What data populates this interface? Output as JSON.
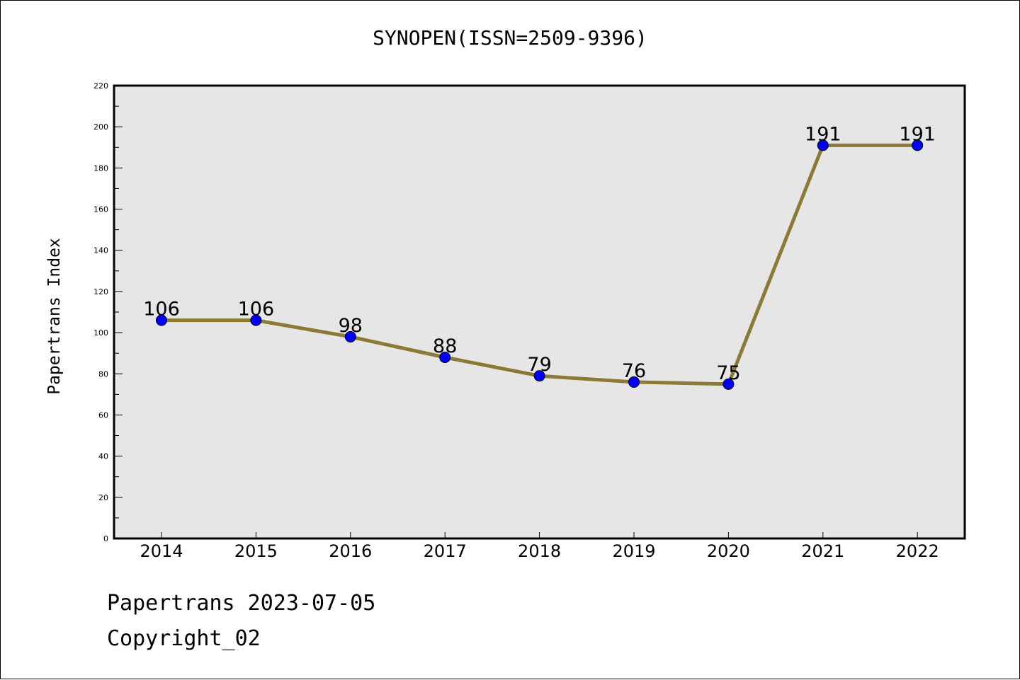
{
  "chart_data": {
    "type": "line",
    "title": "SYNOPEN(ISSN=2509-9396)",
    "xlabel": "",
    "ylabel": "Papertrans Index",
    "categories": [
      "2014",
      "2015",
      "2016",
      "2017",
      "2018",
      "2019",
      "2020",
      "2021",
      "2022"
    ],
    "series": [
      {
        "values": [
          106,
          106,
          98,
          88,
          79,
          76,
          75,
          191,
          191
        ]
      }
    ],
    "ylim": [
      0,
      220
    ],
    "yticks": [
      0,
      20,
      40,
      60,
      80,
      100,
      120,
      140,
      160,
      180,
      200,
      220
    ],
    "grid": false,
    "data_labels": true,
    "colors": {
      "line": "#8b7a35",
      "marker": "#0000ff",
      "plot_background": "#e6e6e6"
    }
  },
  "footer": {
    "line1": "Papertrans 2023-07-05",
    "line2": "Copyright_02"
  }
}
